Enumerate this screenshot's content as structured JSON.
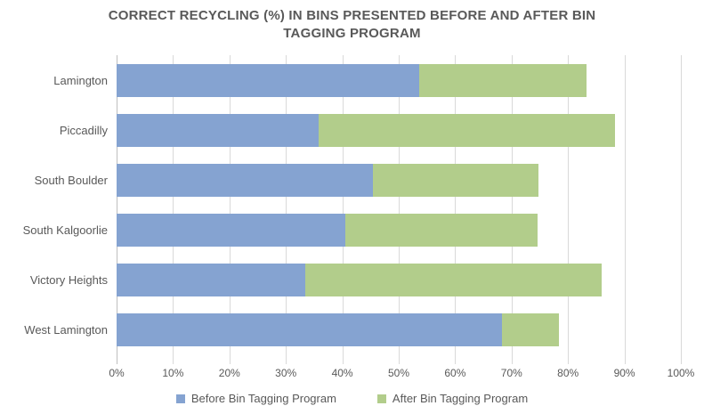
{
  "title": {
    "line1": "CORRECT RECYCLING (%) IN BINS PRESENTED BEFORE AND AFTER BIN",
    "line2": "TAGGING PROGRAM"
  },
  "chart_data": {
    "type": "bar",
    "orientation": "horizontal",
    "stacked": true,
    "title": "CORRECT RECYCLING (%) IN BINS PRESENTED BEFORE AND AFTER BIN TAGGING PROGRAM",
    "categories": [
      "Lamington",
      "Piccadilly",
      "South Boulder",
      "South Kalgoorlie",
      "Victory Heights",
      "West Lamington"
    ],
    "series": [
      {
        "name": "Before Bin Tagging Program",
        "color": "#85A3D1",
        "values": [
          53.6,
          35.8,
          45.5,
          40.6,
          33.4,
          68.3
        ]
      },
      {
        "name": "After Bin Tagging Program",
        "color": "#B2CD8B",
        "values": [
          29.7,
          52.6,
          29.3,
          34.0,
          52.5,
          10.1
        ]
      }
    ],
    "stacked_totals": [
      83.3,
      88.4,
      74.8,
      74.6,
      85.9,
      78.4
    ],
    "x_axis": {
      "min": 0,
      "max": 100,
      "unit": "%",
      "ticks": [
        "0%",
        "10%",
        "20%",
        "30%",
        "40%",
        "50%",
        "60%",
        "70%",
        "80%",
        "90%",
        "100%"
      ]
    },
    "grid": true,
    "legend_position": "bottom"
  },
  "colors": {
    "before_series": "#85A3D1",
    "after_series": "#B2CD8B",
    "gridline": "#D9D9D9",
    "axis_line": "#BFBFBF",
    "text": "#595959"
  },
  "legend": {
    "items": [
      {
        "label": "Before Bin Tagging Program",
        "color": "#85A3D1"
      },
      {
        "label": "After Bin Tagging Program",
        "color": "#B2CD8B"
      }
    ]
  }
}
